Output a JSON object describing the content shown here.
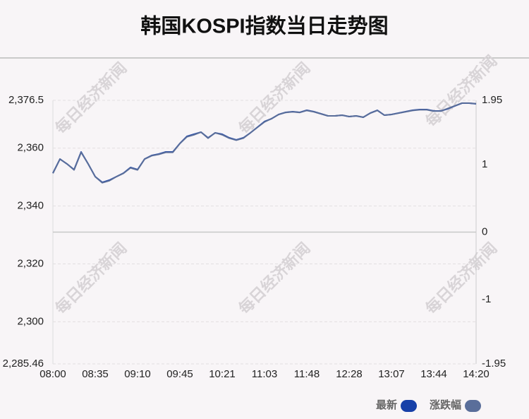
{
  "chart_data": {
    "type": "line",
    "title": "韩国KOSPI指数当日走势图",
    "watermark": "每日经济新闻",
    "xticks": [
      "08:00",
      "08:35",
      "09:10",
      "09:45",
      "10:21",
      "11:03",
      "11:48",
      "12:28",
      "13:07",
      "13:44",
      "14:20"
    ],
    "ylim": [
      2285.46,
      2376.5
    ],
    "yticks": [
      {
        "value": 2285.46,
        "label": "2,285.46"
      },
      {
        "value": 2300,
        "label": "2,300"
      },
      {
        "value": 2320,
        "label": "2,320"
      },
      {
        "value": 2340,
        "label": "2,340"
      },
      {
        "value": 2360,
        "label": "2,360"
      },
      {
        "value": 2376.5,
        "label": "2,376.5"
      }
    ],
    "y2lim": [
      -1.95,
      1.95
    ],
    "y2ticks": [
      -1.95,
      -1,
      0,
      1,
      1.95
    ],
    "series": [
      {
        "name": "最新",
        "color": "#1740a8",
        "values": [
          2351.36,
          2356.24,
          2354.53,
          2352.58,
          2358.68,
          2354.53,
          2350.14,
          2348.18,
          2348.92,
          2350.14,
          2351.36,
          2353.31,
          2352.58,
          2356.24,
          2357.46,
          2357.95,
          2358.68,
          2358.68,
          2361.61,
          2364.05,
          2364.78,
          2365.52,
          2363.56,
          2365.27,
          2364.78,
          2363.56,
          2362.83,
          2363.56,
          2365.27,
          2367.22,
          2369.18,
          2370.15,
          2371.62,
          2372.35,
          2372.59,
          2372.35,
          2373.08,
          2372.59,
          2371.86,
          2371.13,
          2371.13,
          2371.37,
          2370.89,
          2371.13,
          2370.64,
          2372.11,
          2373.08,
          2371.37,
          2371.62,
          2372.11,
          2372.59,
          2373.08,
          2373.33,
          2373.33,
          2372.84,
          2372.84,
          2373.57,
          2374.55,
          2375.52,
          2375.52,
          2375.28
        ]
      },
      {
        "name": "涨跌幅",
        "color": "#5a6e9a",
        "axis": "y2",
        "values": [
          0.87,
          1.08,
          1.01,
          0.92,
          1.18,
          1.01,
          0.82,
          0.73,
          0.76,
          0.82,
          0.87,
          0.95,
          0.92,
          1.08,
          1.13,
          1.15,
          1.18,
          1.18,
          1.31,
          1.41,
          1.44,
          1.48,
          1.39,
          1.47,
          1.44,
          1.39,
          1.36,
          1.39,
          1.47,
          1.55,
          1.63,
          1.68,
          1.74,
          1.77,
          1.78,
          1.77,
          1.8,
          1.78,
          1.75,
          1.72,
          1.72,
          1.73,
          1.71,
          1.72,
          1.7,
          1.76,
          1.8,
          1.73,
          1.74,
          1.76,
          1.78,
          1.8,
          1.81,
          1.81,
          1.79,
          1.79,
          1.83,
          1.87,
          1.91,
          1.91,
          1.9
        ]
      }
    ],
    "grid": true
  }
}
